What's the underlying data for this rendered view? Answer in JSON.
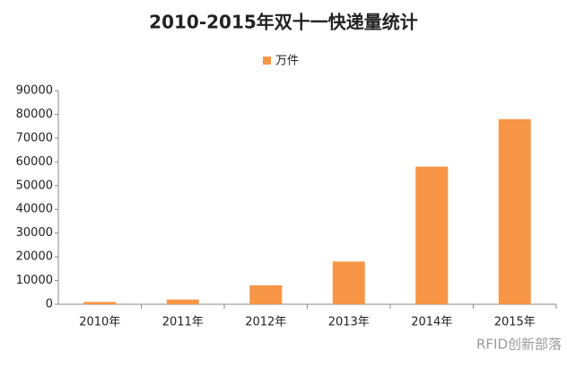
{
  "chart_data": {
    "type": "bar",
    "title": "2010-2015年双十一快递量统计",
    "categories": [
      "2010年",
      "2011年",
      "2012年",
      "2013年",
      "2014年",
      "2015年"
    ],
    "series": [
      {
        "name": "万件",
        "color": "#f79646",
        "values": [
          1000,
          2000,
          8000,
          18000,
          58000,
          78000
        ]
      }
    ],
    "ylim": [
      0,
      90000
    ],
    "yticks": [
      0,
      10000,
      20000,
      30000,
      40000,
      50000,
      60000,
      70000,
      80000,
      90000
    ],
    "grid": false,
    "legend": "top",
    "watermark": "RFID创新部落"
  }
}
